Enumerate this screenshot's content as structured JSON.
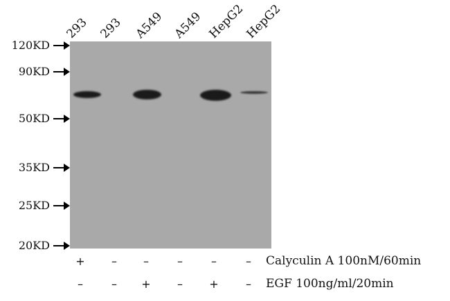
{
  "lanes": [
    {
      "label": "293",
      "calyculin": "+",
      "egf": "–"
    },
    {
      "label": "293",
      "calyculin": "–",
      "egf": "–"
    },
    {
      "label": "A549",
      "calyculin": "–",
      "egf": "+"
    },
    {
      "label": "A549",
      "calyculin": "–",
      "egf": "–"
    },
    {
      "label": "HepG2",
      "calyculin": "–",
      "egf": "+"
    },
    {
      "label": "HepG2",
      "calyculin": "–",
      "egf": "–"
    }
  ],
  "markers": [
    "120KD",
    "90KD",
    "50KD",
    "35KD",
    "25KD",
    "20KD"
  ],
  "treatments": {
    "calyculin": "Calyculin A 100nM/60min",
    "egf": "EGF 100ng/ml/20min"
  },
  "colors": {
    "membrane": "#a9a9a9",
    "band": "#1a1a1a"
  }
}
